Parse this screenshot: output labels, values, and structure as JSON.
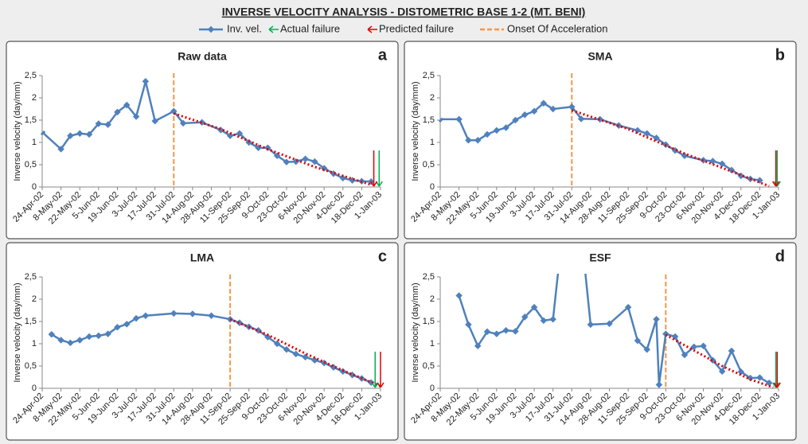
{
  "title": "INVERSE VELOCITY ANALYSIS - DISTOMETRIC BASE 1-2 (MT. BENI)",
  "legend": [
    {
      "name": "Inv. vel.",
      "color": "#4f81bd"
    },
    {
      "name": "Actual failure",
      "color": "#00b050"
    },
    {
      "name": "Predicted failure",
      "color": "#e00000"
    },
    {
      "name": "Onset Of Acceleration",
      "color": "#f79646"
    }
  ],
  "chart_data": [
    {
      "type": "line",
      "title": "Raw data",
      "label": "a",
      "y_label": "Inverse velocity (day/mm)",
      "xlim": [
        "2002-04-24",
        "2003-01-01"
      ],
      "ylim": [
        0,
        2.5
      ],
      "yticks": [
        0,
        {
          "value": 0.5,
          "label": "0,5"
        },
        1,
        {
          "value": 1.5,
          "label": "1,5"
        },
        2,
        {
          "value": 2.5,
          "label": "2,5"
        }
      ],
      "xticks": [
        {
          "value": "2002-04-24",
          "label": "24-Apr-02"
        },
        {
          "value": "2002-05-08",
          "label": "8-May-02"
        },
        {
          "value": "2002-05-22",
          "label": "22-May-02"
        },
        {
          "value": "2002-06-05",
          "label": "5-Jun-02"
        },
        {
          "value": "2002-06-19",
          "label": "19-Jun-02"
        },
        {
          "value": "2002-07-03",
          "label": "3-Jul-02"
        },
        {
          "value": "2002-07-17",
          "label": "17-Jul-02"
        },
        {
          "value": "2002-07-31",
          "label": "31-Jul-02"
        },
        {
          "value": "2002-08-14",
          "label": "14-Aug-02"
        },
        {
          "value": "2002-08-28",
          "label": "28-Aug-02"
        },
        {
          "value": "2002-09-11",
          "label": "11-Sep-02"
        },
        {
          "value": "2002-09-25",
          "label": "25-Sep-02"
        },
        {
          "value": "2002-10-09",
          "label": "9-Oct-02"
        },
        {
          "value": "2002-10-23",
          "label": "23-Oct-02"
        },
        {
          "value": "2002-11-06",
          "label": "6-Nov-02"
        },
        {
          "value": "2002-11-20",
          "label": "20-Nov-02"
        },
        {
          "value": "2002-12-04",
          "label": "4-Dec-02"
        },
        {
          "value": "2002-12-18",
          "label": "18-Dec-02"
        },
        {
          "value": "2003-01-01",
          "label": "1-Jan-03"
        }
      ],
      "onset": "2002-07-31",
      "actual_failure": "2002-12-31",
      "predicted_failure": "2002-12-27",
      "series": [
        {
          "color": "#4f81bd",
          "style": "solid",
          "x": [
            "2002-04-24",
            "2002-05-08",
            "2002-05-15",
            "2002-05-22",
            "2002-05-29",
            "2002-06-05",
            "2002-06-12",
            "2002-06-19",
            "2002-06-26",
            "2002-07-03",
            "2002-07-10",
            "2002-07-17",
            "2002-07-31",
            "2002-08-07",
            "2002-08-21",
            "2002-09-04",
            "2002-09-11",
            "2002-09-18",
            "2002-09-25",
            "2002-10-02",
            "2002-10-09",
            "2002-10-16",
            "2002-10-23",
            "2002-10-30",
            "2002-11-06",
            "2002-11-13",
            "2002-11-20",
            "2002-11-27",
            "2002-12-04",
            "2002-12-11",
            "2002-12-18",
            "2002-12-25"
          ],
          "values": [
            1.23,
            0.85,
            1.15,
            1.2,
            1.18,
            1.42,
            1.4,
            1.68,
            1.84,
            1.58,
            2.37,
            1.48,
            1.7,
            1.43,
            1.45,
            1.28,
            1.15,
            1.2,
            1.0,
            0.88,
            0.88,
            0.7,
            0.56,
            0.57,
            0.63,
            0.57,
            0.42,
            0.3,
            0.2,
            0.15,
            0.13,
            0.12
          ]
        },
        {
          "color": "#e00000",
          "style": "dotted",
          "x": [
            "2002-07-31",
            "2002-09-04",
            "2002-10-09",
            "2002-11-13",
            "2002-12-25"
          ],
          "values": [
            1.65,
            1.3,
            0.85,
            0.45,
            0.05
          ]
        }
      ]
    },
    {
      "type": "line",
      "title": "SMA",
      "label": "b",
      "y_label": "Inverse velocity (day/mm)",
      "xlim": [
        "2002-04-24",
        "2003-01-01"
      ],
      "ylim": [
        0,
        2.5
      ],
      "yticks": [
        0,
        {
          "value": 0.5,
          "label": "0,5"
        },
        1,
        {
          "value": 1.5,
          "label": "1,5"
        },
        2,
        {
          "value": 2.5,
          "label": "2,5"
        }
      ],
      "xticks": [
        {
          "value": "2002-04-24",
          "label": "24-Apr-02"
        },
        {
          "value": "2002-05-08",
          "label": "8-May-02"
        },
        {
          "value": "2002-05-22",
          "label": "22-May-02"
        },
        {
          "value": "2002-06-05",
          "label": "5-Jun-02"
        },
        {
          "value": "2002-06-19",
          "label": "19-Jun-02"
        },
        {
          "value": "2002-07-03",
          "label": "3-Jul-02"
        },
        {
          "value": "2002-07-17",
          "label": "17-Jul-02"
        },
        {
          "value": "2002-07-31",
          "label": "31-Jul-02"
        },
        {
          "value": "2002-08-14",
          "label": "14-Aug-02"
        },
        {
          "value": "2002-08-28",
          "label": "28-Aug-02"
        },
        {
          "value": "2002-09-11",
          "label": "11-Sep-02"
        },
        {
          "value": "2002-09-25",
          "label": "25-Sep-02"
        },
        {
          "value": "2002-10-09",
          "label": "9-Oct-02"
        },
        {
          "value": "2002-10-23",
          "label": "23-Oct-02"
        },
        {
          "value": "2002-11-06",
          "label": "6-Nov-02"
        },
        {
          "value": "2002-11-20",
          "label": "20-Nov-02"
        },
        {
          "value": "2002-12-04",
          "label": "4-Dec-02"
        },
        {
          "value": "2002-12-18",
          "label": "18-Dec-02"
        },
        {
          "value": "2003-01-01",
          "label": "1-Jan-03"
        }
      ],
      "onset": "2002-07-31",
      "actual_failure": "2002-12-31",
      "predicted_failure": "2002-12-30",
      "series": [
        {
          "color": "#4f81bd",
          "style": "solid",
          "x": [
            "2002-04-24",
            "2002-05-08",
            "2002-05-15",
            "2002-05-22",
            "2002-05-29",
            "2002-06-05",
            "2002-06-12",
            "2002-06-19",
            "2002-06-26",
            "2002-07-03",
            "2002-07-10",
            "2002-07-17",
            "2002-07-31",
            "2002-08-07",
            "2002-08-21",
            "2002-09-04",
            "2002-09-18",
            "2002-09-25",
            "2002-10-02",
            "2002-10-09",
            "2002-10-16",
            "2002-10-23",
            "2002-11-06",
            "2002-11-13",
            "2002-11-20",
            "2002-11-27",
            "2002-12-04",
            "2002-12-11",
            "2002-12-18"
          ],
          "values": [
            1.52,
            1.52,
            1.05,
            1.05,
            1.18,
            1.27,
            1.33,
            1.5,
            1.62,
            1.7,
            1.88,
            1.75,
            1.8,
            1.53,
            1.52,
            1.38,
            1.27,
            1.2,
            1.1,
            0.95,
            0.82,
            0.7,
            0.6,
            0.58,
            0.52,
            0.38,
            0.25,
            0.18,
            0.15
          ]
        },
        {
          "color": "#e00000",
          "style": "dotted",
          "x": [
            "2002-07-31",
            "2002-09-11",
            "2002-10-23",
            "2002-11-27",
            "2002-12-25"
          ],
          "values": [
            1.72,
            1.3,
            0.75,
            0.35,
            0.02
          ]
        }
      ]
    },
    {
      "type": "line",
      "title": "LMA",
      "label": "c",
      "y_label": "Inverse velocity (day/mm)",
      "xlim": [
        "2002-04-24",
        "2003-01-01"
      ],
      "ylim": [
        0,
        2.5
      ],
      "yticks": [
        0,
        {
          "value": 0.5,
          "label": "0,5"
        },
        1,
        {
          "value": 1.5,
          "label": "1,5"
        },
        2,
        {
          "value": 2.5,
          "label": "2,5"
        }
      ],
      "xticks": [
        {
          "value": "2002-04-24",
          "label": "24-Apr-02"
        },
        {
          "value": "2002-05-08",
          "label": "8-May-02"
        },
        {
          "value": "2002-05-22",
          "label": "22-May-02"
        },
        {
          "value": "2002-06-05",
          "label": "5-Jun-02"
        },
        {
          "value": "2002-06-19",
          "label": "19-Jun-02"
        },
        {
          "value": "2002-07-03",
          "label": "3-Jul-02"
        },
        {
          "value": "2002-07-17",
          "label": "17-Jul-02"
        },
        {
          "value": "2002-07-31",
          "label": "31-Jul-02"
        },
        {
          "value": "2002-08-14",
          "label": "14-Aug-02"
        },
        {
          "value": "2002-08-28",
          "label": "28-Aug-02"
        },
        {
          "value": "2002-09-11",
          "label": "11-Sep-02"
        },
        {
          "value": "2002-09-25",
          "label": "25-Sep-02"
        },
        {
          "value": "2002-10-09",
          "label": "9-Oct-02"
        },
        {
          "value": "2002-10-23",
          "label": "23-Oct-02"
        },
        {
          "value": "2002-11-06",
          "label": "6-Nov-02"
        },
        {
          "value": "2002-11-20",
          "label": "20-Nov-02"
        },
        {
          "value": "2002-12-04",
          "label": "4-Dec-02"
        },
        {
          "value": "2002-12-18",
          "label": "18-Dec-02"
        },
        {
          "value": "2003-01-01",
          "label": "1-Jan-03"
        }
      ],
      "onset": "2002-09-11",
      "actual_failure": "2002-12-28",
      "predicted_failure": "2003-01-01",
      "series": [
        {
          "color": "#4f81bd",
          "style": "solid",
          "x": [
            "2002-05-01",
            "2002-05-08",
            "2002-05-15",
            "2002-05-22",
            "2002-05-29",
            "2002-06-05",
            "2002-06-12",
            "2002-06-19",
            "2002-06-26",
            "2002-07-03",
            "2002-07-10",
            "2002-07-31",
            "2002-08-14",
            "2002-08-28",
            "2002-09-11",
            "2002-09-18",
            "2002-09-25",
            "2002-10-02",
            "2002-10-09",
            "2002-10-16",
            "2002-10-23",
            "2002-10-30",
            "2002-11-06",
            "2002-11-13",
            "2002-11-20",
            "2002-11-27",
            "2002-12-04",
            "2002-12-11",
            "2002-12-18",
            "2002-12-25"
          ],
          "values": [
            1.21,
            1.08,
            1.02,
            1.08,
            1.16,
            1.18,
            1.22,
            1.37,
            1.44,
            1.57,
            1.63,
            1.68,
            1.67,
            1.63,
            1.55,
            1.47,
            1.38,
            1.3,
            1.15,
            1.0,
            0.87,
            0.77,
            0.7,
            0.63,
            0.57,
            0.47,
            0.38,
            0.3,
            0.22,
            0.13
          ]
        },
        {
          "color": "#e00000",
          "style": "dotted",
          "x": [
            "2002-09-11",
            "2002-10-09",
            "2002-11-06",
            "2002-12-04",
            "2003-01-01"
          ],
          "values": [
            1.55,
            1.2,
            0.78,
            0.4,
            0.05
          ]
        }
      ]
    },
    {
      "type": "line",
      "title": "ESF",
      "label": "d",
      "y_label": "Inverse velocity (day/mm)",
      "xlim": [
        "2002-04-24",
        "2003-01-01"
      ],
      "ylim": [
        0,
        2.5
      ],
      "yticks": [
        0,
        {
          "value": 0.5,
          "label": "0,5"
        },
        1,
        {
          "value": 1.5,
          "label": "1,5"
        },
        2,
        {
          "value": 2.5,
          "label": "2,5"
        }
      ],
      "xticks": [
        {
          "value": "2002-04-24",
          "label": "24-Apr-02"
        },
        {
          "value": "2002-05-08",
          "label": "8-May-02"
        },
        {
          "value": "2002-05-22",
          "label": "22-May-02"
        },
        {
          "value": "2002-06-05",
          "label": "5-Jun-02"
        },
        {
          "value": "2002-06-19",
          "label": "19-Jun-02"
        },
        {
          "value": "2002-07-03",
          "label": "3-Jul-02"
        },
        {
          "value": "2002-07-17",
          "label": "17-Jul-02"
        },
        {
          "value": "2002-07-31",
          "label": "31-Jul-02"
        },
        {
          "value": "2002-08-14",
          "label": "14-Aug-02"
        },
        {
          "value": "2002-08-28",
          "label": "28-Aug-02"
        },
        {
          "value": "2002-09-11",
          "label": "11-Sep-02"
        },
        {
          "value": "2002-09-25",
          "label": "25-Sep-02"
        },
        {
          "value": "2002-10-09",
          "label": "9-Oct-02"
        },
        {
          "value": "2002-10-23",
          "label": "23-Oct-02"
        },
        {
          "value": "2002-11-06",
          "label": "6-Nov-02"
        },
        {
          "value": "2002-11-20",
          "label": "20-Nov-02"
        },
        {
          "value": "2002-12-04",
          "label": "4-Dec-02"
        },
        {
          "value": "2002-12-18",
          "label": "18-Dec-02"
        },
        {
          "value": "2003-01-01",
          "label": "1-Jan-03"
        }
      ],
      "onset": "2002-10-09",
      "actual_failure": "2002-12-30",
      "predicted_failure": "2002-12-31",
      "series": [
        {
          "color": "#4f81bd",
          "style": "solid",
          "x": [
            "2002-05-08",
            "2002-05-15",
            "2002-05-22",
            "2002-05-29",
            "2002-06-05",
            "2002-06-12",
            "2002-06-19",
            "2002-06-26",
            "2002-07-03",
            "2002-07-10",
            "2002-07-17",
            "2002-07-24",
            "2002-08-07",
            "2002-08-14",
            "2002-08-28",
            "2002-09-11",
            "2002-09-18",
            "2002-09-25",
            "2002-10-02",
            "2002-10-04",
            "2002-10-09",
            "2002-10-16",
            "2002-10-23",
            "2002-10-30",
            "2002-11-06",
            "2002-11-13",
            "2002-11-20",
            "2002-11-27",
            "2002-12-04",
            "2002-12-11",
            "2002-12-18",
            "2002-12-25"
          ],
          "values": [
            2.08,
            1.43,
            0.95,
            1.27,
            1.22,
            1.3,
            1.28,
            1.6,
            1.82,
            1.52,
            1.55,
            3.5,
            3.5,
            1.43,
            1.45,
            1.82,
            1.07,
            0.87,
            1.55,
            0.08,
            1.22,
            1.16,
            0.75,
            0.93,
            0.95,
            0.63,
            0.38,
            0.84,
            0.37,
            0.23,
            0.24,
            0.12
          ]
        },
        {
          "color": "#e00000",
          "style": "dotted",
          "x": [
            "2002-10-09",
            "2002-10-30",
            "2002-11-20",
            "2002-12-11",
            "2002-12-28"
          ],
          "values": [
            1.2,
            0.85,
            0.5,
            0.2,
            0.02
          ]
        }
      ]
    }
  ]
}
